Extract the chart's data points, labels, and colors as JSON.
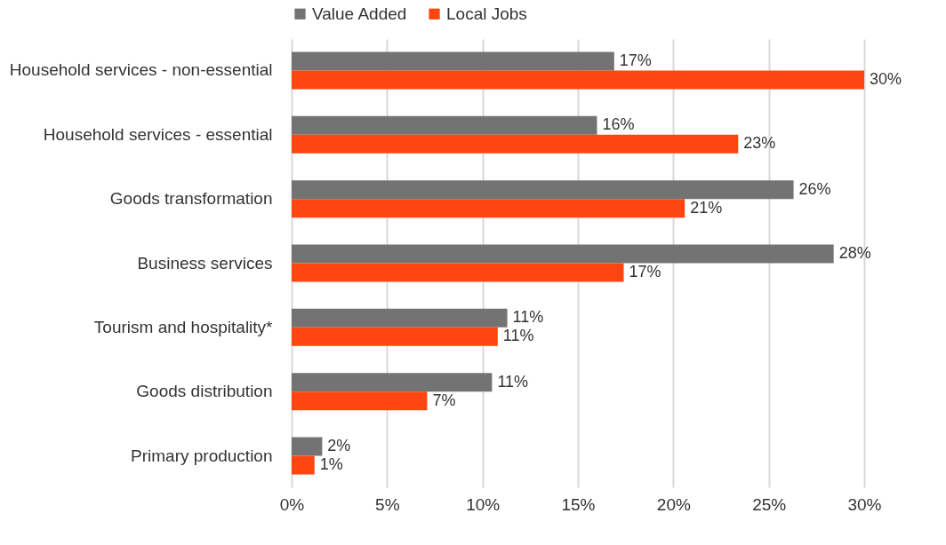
{
  "chart_data": {
    "type": "bar",
    "orientation": "horizontal",
    "categories": [
      "Household services - non-essential",
      "Household services - essential",
      "Goods transformation",
      "Business services",
      "Tourism and hospitality*",
      "Goods distribution",
      "Primary production"
    ],
    "series": [
      {
        "name": "Value Added",
        "color": "#737373",
        "values": [
          16.9,
          16.0,
          26.3,
          28.4,
          11.3,
          10.5,
          1.6
        ],
        "value_labels": [
          "17%",
          "16%",
          "26%",
          "28%",
          "11%",
          "11%",
          "2%"
        ]
      },
      {
        "name": "Local Jobs",
        "color": "#ff4612",
        "values": [
          30.0,
          23.4,
          20.6,
          17.4,
          10.8,
          7.1,
          1.2
        ],
        "value_labels": [
          "30%",
          "23%",
          "21%",
          "17%",
          "11%",
          "7%",
          "1%"
        ]
      }
    ],
    "xlim": [
      0,
      30
    ],
    "xticks": [
      {
        "value": 0,
        "label": "0%"
      },
      {
        "value": 5,
        "label": "5%"
      },
      {
        "value": 10,
        "label": "10%"
      },
      {
        "value": 15,
        "label": "15%"
      },
      {
        "value": 20,
        "label": "20%"
      },
      {
        "value": 25,
        "label": "25%"
      },
      {
        "value": 30,
        "label": "30%"
      }
    ],
    "grid": "x",
    "legend": "top"
  }
}
